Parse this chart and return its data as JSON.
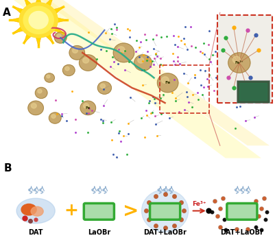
{
  "title_a": "A",
  "title_b": "B",
  "bg_color_top": "#fdf8e1",
  "bg_color_bottom": "#ffffff",
  "sun_color": "#FFE033",
  "sun_ray_color": "#FFD700",
  "sun_center_color": "#FFD700",
  "sun_outline_color": "#FFA500",
  "beam_color": "#F5F0A0",
  "nanoparticle_color": "#C8A96E",
  "nanoparticle_edge": "#A08040",
  "curve_colors": [
    "#CC3366",
    "#4466CC",
    "#22AA88",
    "#CC4422"
  ],
  "label_dat": "DAT",
  "label_laobr": "LaOBr",
  "label_dat_laobr1": "DAT+LaOBr",
  "label_dat_laobr2": "DAT+LaOBr",
  "label_fe": "Fe³⁺",
  "arrow_color": "#CC3322",
  "plus_color": "#FFB300",
  "gt_color": "#FFB300",
  "dat_orange": "#E06020",
  "dat_peach": "#F0A070",
  "dat_blue_bg": "#A8C8E8",
  "laobr_green": "#33AA33",
  "laobr_fill": "#AADDAA",
  "combined_blue": "#A8C8E8",
  "scattered_color": "#C06030",
  "black_dot": "#111111",
  "smoke_color": "#88AACC",
  "fe_text_color": "#CC2222",
  "dashed_box_color": "#CC3322",
  "inset_bg": "#E8E8E8"
}
